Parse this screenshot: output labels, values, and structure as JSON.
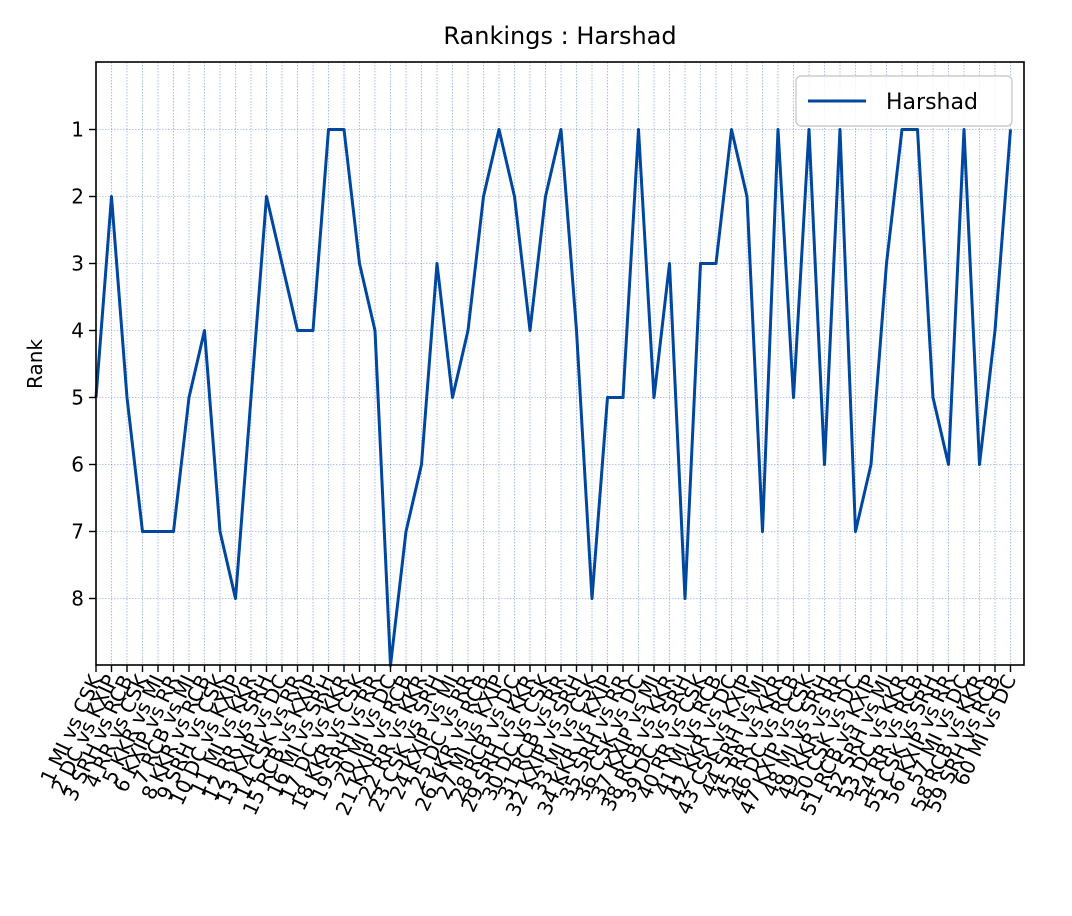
{
  "chart_data": {
    "type": "line",
    "title": "Rankings : Harshad",
    "xlabel": "",
    "ylabel": "Rank",
    "y_inverted": true,
    "ylim": [
      9,
      0
    ],
    "yticks": [
      1,
      2,
      3,
      4,
      5,
      6,
      7,
      8
    ],
    "grid": true,
    "legend_position": "top-right",
    "line_color": "#0047a0",
    "categories": [
      "1 MI vs CSK",
      "2 DC vs KXIP",
      "3 SRH vs RCB",
      "4 RR vs CSK",
      "5 KKR vs MI",
      "6 KXIP vs RR",
      "7 RCB vs MI",
      "8 KKR vs RCB",
      "9 SRH vs CSK",
      "10 DC vs KXIP",
      "11 MI vs KKR",
      "12 RR vs SRH",
      "13 KXIP vs DC",
      "14 CSK vs RR",
      "15 RCB vs KXIP",
      "16 MI vs SRH",
      "17 DC vs KKR",
      "18 KKR vs CSK",
      "19 SRH vs RR",
      "20 MI vs DC",
      "21 KXIP vs RCB",
      "22 RR vs KKR",
      "23 CSK vs SRH",
      "24 KXIP vs MI",
      "25 DC vs RR",
      "26 KKR vs RCB",
      "27 MI vs KXIP",
      "28 RCB vs DC",
      "29 SRH vs KKR",
      "30 DC vs CSK",
      "31 RCB vs RR",
      "32 KXIP vs SRH",
      "33 MI vs CSK",
      "34 KKR vs KXIP",
      "35 SRH vs RR",
      "36 CSK vs DC",
      "37 KXIP vs MI",
      "38 RCB vs KKR",
      "39 DC vs SRH",
      "40 RR vs CSK",
      "41 MI vs RCB",
      "42 KKR vs DC",
      "43 CSK vs KXIP",
      "44 SRH vs MI",
      "45 RR vs KKR",
      "46 DC vs RCB",
      "47 KXIP vs CSK",
      "48 MI vs SRH",
      "49 KKR vs RR",
      "50 CSK vs DC",
      "51 RCB vs KXIP",
      "52 SRH vs MI",
      "53 DC vs KKR",
      "54 RR vs RCB",
      "55 CSK vs SRH",
      "56 KXIP vs RR",
      "57 MI vs DC",
      "58 RCB vs KKR",
      "59 SRH vs RCB",
      "60 MI vs DC"
    ],
    "xtick_labels": [
      "1 MI vs CSK",
      "2 DC vs KXIP",
      "3 SRH vs RCB",
      "4 RR vs CSK",
      "5 KKR vs MI",
      "6 KXIP vs RR",
      "7 RCB vs MI",
      "8 KKR vs RCB",
      "9 SRH vs CSK",
      "10 DC vs KXIP",
      "11 MI vs KKR",
      "12 RR vs SRH",
      "13 KXIP vs DC",
      "14 CSK vs RR",
      "15 RCB vs KXIP",
      "16 MI vs SRH",
      "17 DC vs KKR",
      "18 KKR vs CSK",
      "19 SRH vs RR",
      "20 MI vs DC",
      "21 KXIP vs RCB",
      "22 RR vs KKR",
      "23 CSK vs SRH",
      "24 KXIP vs MI",
      "25 DC vs RR",
      "26 KKR vs RCB",
      "27 MI vs KXIP",
      "28 RCB vs DC",
      "29 SRH vs KKR",
      "30 DC vs CSK",
      "31 RCB vs RR",
      "32 KXIP vs SRH",
      "33 MI vs CSK",
      "34 KKR vs KXIP",
      "35 SRH vs RR",
      "36 CSK vs DC",
      "37 KXIP vs MI",
      "38 RCB vs KKR",
      "39 DC vs SRH",
      "40 RR vs CSK",
      "41 MI vs RCB",
      "42 KKR vs DC",
      "43 CSK vs KXIP",
      "44 SRH vs MI",
      "45 RR vs KKR",
      "46 DC vs RCB",
      "47 KXIP vs CSK",
      "48 MI vs SRH",
      "49 KKR vs RR",
      "50 CSK vs DC",
      "51 RCB vs KXIP",
      "52 SRH vs MI",
      "53 DC vs KKR",
      "54 RR vs RCB",
      "55 CSK vs SRH",
      "56 KXIP vs RR",
      "57 MI vs DC",
      "58 RCB vs KKR",
      "59 SRH vs RCB",
      "60 MI vs DC"
    ],
    "series": [
      {
        "name": "Harshad",
        "values": [
          5,
          2,
          5,
          7,
          7,
          7,
          5,
          4,
          7,
          8,
          5,
          2,
          3,
          4,
          4,
          1,
          1,
          3,
          4,
          9,
          7,
          6,
          3,
          5,
          4,
          2,
          1,
          2,
          4,
          2,
          1,
          4,
          8,
          5,
          5,
          1,
          5,
          3,
          8,
          3,
          3,
          1,
          2,
          7,
          1,
          5,
          1,
          6,
          1,
          7,
          6,
          3,
          1,
          1,
          5,
          6,
          1,
          6,
          4,
          1
        ]
      }
    ]
  }
}
